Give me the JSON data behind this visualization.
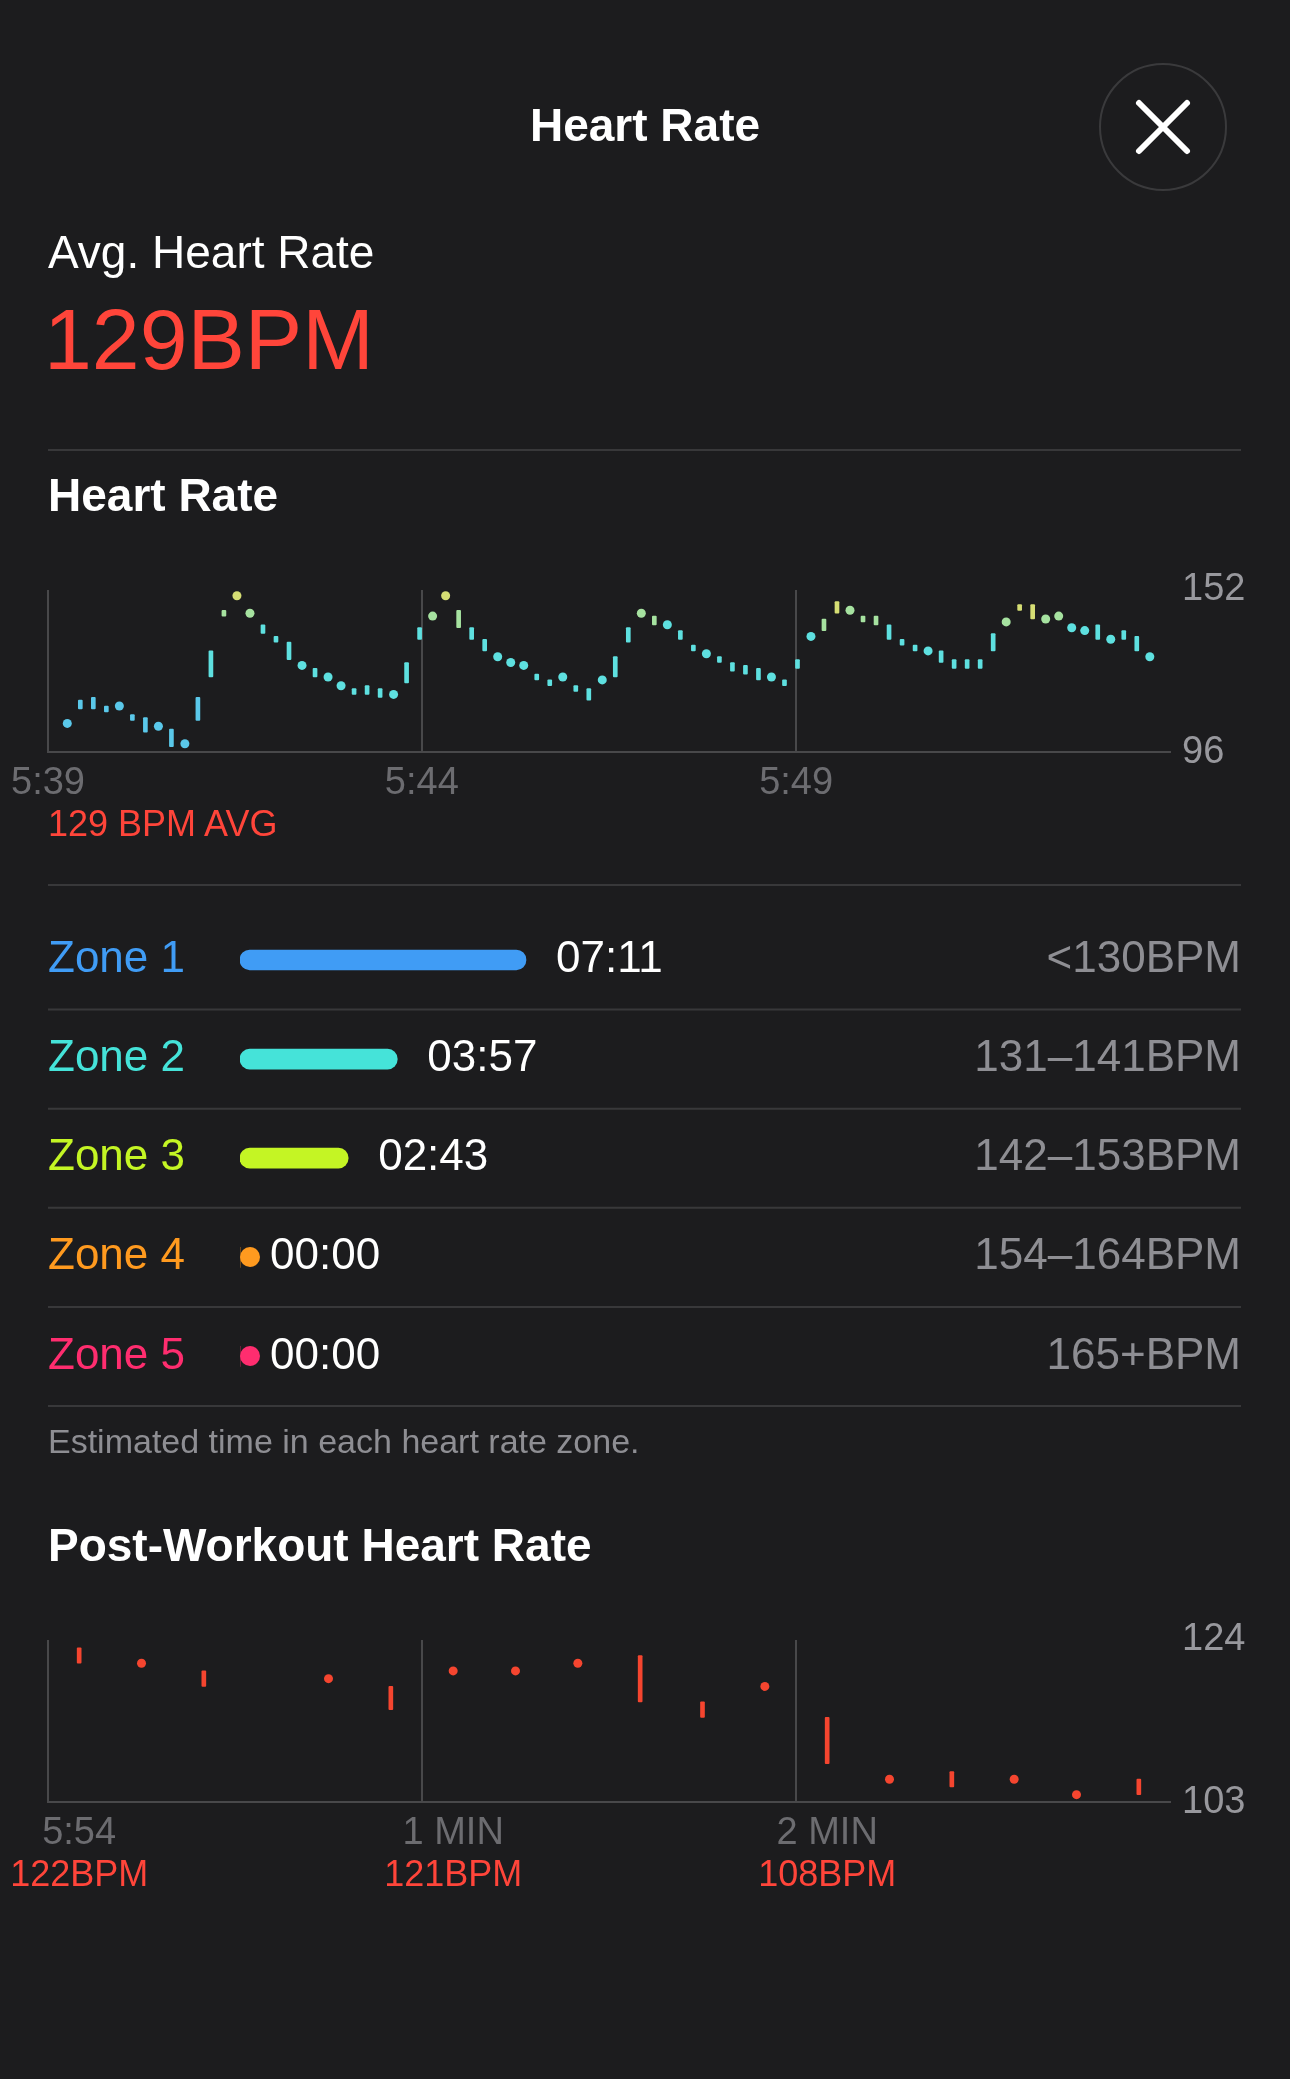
{
  "chart_data": [
    {
      "type": "other",
      "title": "Heart Rate",
      "subtitle": "Avg. Heart Rate",
      "annotations": [
        "129BPM"
      ]
    },
    {
      "type": "bar",
      "title": "Heart Rate",
      "x": [
        5.6543,
        5.6572,
        5.6601,
        5.663,
        5.6659,
        5.6688,
        5.6717,
        5.6746,
        5.6775,
        5.6805,
        5.6834,
        5.6863,
        5.6892,
        5.6921,
        5.695,
        5.6979,
        5.7008,
        5.7037,
        5.7066,
        5.7095,
        5.7124,
        5.7153,
        5.7182,
        5.7211,
        5.724,
        5.727,
        5.7299,
        5.7328,
        5.7357,
        5.7386,
        5.7415,
        5.7444,
        5.7473,
        5.7502,
        5.7531,
        5.756,
        5.7589,
        5.7618,
        5.7647,
        5.7676,
        5.7705,
        5.7735,
        5.7764,
        5.7793,
        5.7822,
        5.7851,
        5.788,
        5.7909,
        5.7938,
        5.7967,
        5.7996,
        5.8025,
        5.8054,
        5.8083,
        5.8112,
        5.8141,
        5.817,
        5.82,
        5.8229,
        5.8258,
        5.8287,
        5.8316,
        5.8345,
        5.8374,
        5.8403,
        5.8432,
        5.8461,
        5.849,
        5.8519,
        5.8548,
        5.8577,
        5.8606,
        5.8635,
        5.8665,
        5.8694,
        5.8723,
        5.8752,
        5.8781,
        5.881,
        5.8839,
        5.8868,
        5.8897,
        5.8926,
        5.8955
      ],
      "marker": "circle",
      "series": [
        {
          "type": "bar",
          "base": [
            null,
            111,
            111,
            110,
            null,
            107,
            103,
            null,
            98,
            null,
            107,
            122,
            143,
            null,
            null,
            137,
            134,
            128,
            null,
            122,
            null,
            null,
            116,
            116,
            115,
            null,
            120,
            135,
            null,
            null,
            139,
            135,
            131,
            null,
            null,
            null,
            121,
            119,
            null,
            117,
            114,
            null,
            122,
            134,
            null,
            140,
            null,
            135,
            131,
            null,
            127,
            124,
            123,
            121,
            null,
            119,
            125,
            null,
            138,
            144,
            null,
            141,
            140,
            135,
            133,
            131,
            null,
            127,
            125,
            125,
            125,
            131,
            null,
            145,
            142,
            null,
            null,
            null,
            null,
            135,
            null,
            135,
            131,
            null
          ],
          "values": [
            null,
            3,
            4,
            2,
            null,
            2,
            5,
            null,
            6,
            null,
            8,
            9,
            2,
            null,
            null,
            3,
            2,
            6,
            null,
            3,
            null,
            null,
            2,
            3,
            3,
            null,
            7,
            4,
            null,
            null,
            6,
            4,
            4,
            null,
            null,
            null,
            2,
            2,
            null,
            2,
            4,
            null,
            7,
            5,
            null,
            3,
            null,
            3,
            2,
            null,
            2,
            3,
            3,
            4,
            null,
            2,
            3,
            null,
            4,
            4,
            null,
            2,
            3,
            5,
            2,
            2,
            null,
            4,
            3,
            3,
            3,
            6,
            null,
            2,
            5,
            null,
            null,
            null,
            null,
            5,
            null,
            3,
            5,
            null
          ],
          "colors": [
            null,
            "#5ac8ea",
            "#5ac8ea",
            "#5ac8ea",
            null,
            "#5ac8ea",
            "#5ac8ea",
            null,
            "#5ac8ea",
            null,
            "#5ac8ea",
            "#5ee0e0",
            "#a6e2a0",
            null,
            null,
            "#5ee0e0",
            "#5ee0e0",
            "#5ee0e0",
            null,
            "#5ee0e0",
            null,
            null,
            "#5ee0e0",
            "#5ee0e0",
            "#5ee0e0",
            null,
            "#5ee0e0",
            "#5ee0e0",
            null,
            null,
            "#a6e2a0",
            "#5ee0e0",
            "#5ee0e0",
            null,
            null,
            null,
            "#5ee0e0",
            "#5ee0e0",
            null,
            "#5ee0e0",
            "#5ee0e0",
            null,
            "#5ee0e0",
            "#5ee0e0",
            null,
            "#a6e2a0",
            null,
            "#5ee0e0",
            "#5ee0e0",
            null,
            "#5ee0e0",
            "#5ee0e0",
            "#5ee0e0",
            "#5ee0e0",
            null,
            "#5ee0e0",
            "#5ee0e0",
            null,
            "#a6e2a0",
            "#d6de74",
            null,
            "#a6e2a0",
            "#a6e2a0",
            "#5ee0e0",
            "#5ee0e0",
            "#5ee0e0",
            null,
            "#5ee0e0",
            "#5ee0e0",
            "#5ee0e0",
            "#5ee0e0",
            "#5ee0e0",
            null,
            "#d6de74",
            "#d6de74",
            null,
            null,
            null,
            null,
            "#5ee0e0",
            null,
            "#5ee0e0",
            "#5ee0e0",
            null
          ]
        },
        {
          "type": "scatter",
          "values": [
            106,
            null,
            null,
            null,
            112,
            null,
            null,
            105,
            null,
            99,
            null,
            null,
            null,
            150,
            144,
            null,
            null,
            null,
            126,
            null,
            122,
            119,
            null,
            null,
            null,
            116,
            null,
            null,
            143,
            150,
            null,
            null,
            null,
            129,
            127,
            126,
            null,
            null,
            122,
            null,
            null,
            121,
            null,
            null,
            144,
            null,
            140,
            null,
            null,
            130,
            null,
            null,
            null,
            null,
            122,
            null,
            null,
            136,
            null,
            null,
            145,
            null,
            null,
            null,
            null,
            null,
            131,
            null,
            null,
            null,
            null,
            null,
            141,
            null,
            null,
            142,
            143,
            139,
            138,
            null,
            135,
            null,
            null,
            129
          ],
          "colors": [
            "#5ac8ea",
            null,
            null,
            null,
            "#5ac8ea",
            null,
            null,
            "#5ac8ea",
            null,
            "#5ac8ea",
            null,
            null,
            null,
            "#d6de74",
            "#a6e2a0",
            null,
            null,
            null,
            "#5ee0e0",
            null,
            "#5ee0e0",
            "#5ee0e0",
            null,
            null,
            null,
            "#5ee0e0",
            null,
            null,
            "#a6e2a0",
            "#d6de74",
            null,
            null,
            null,
            "#5ee0e0",
            "#5ee0e0",
            "#5ee0e0",
            null,
            null,
            "#5ee0e0",
            null,
            null,
            "#5ee0e0",
            null,
            null,
            "#a6e2a0",
            null,
            "#5ee0e0",
            null,
            null,
            "#5ee0e0",
            null,
            null,
            null,
            null,
            "#5ee0e0",
            null,
            null,
            "#5ee0e0",
            null,
            null,
            "#a6e2a0",
            null,
            null,
            null,
            null,
            null,
            "#5ee0e0",
            null,
            null,
            null,
            null,
            null,
            "#a6e2a0",
            null,
            null,
            "#a6e2a0",
            "#a6e2a0",
            "#5ee0e0",
            "#5ee0e0",
            null,
            "#5ee0e0",
            null,
            null,
            "#5ee0e0"
          ]
        }
      ],
      "xlim": [
        5.65,
        5.9
      ],
      "xticks": [
        {
          "value": 5.65,
          "label": "5:39"
        },
        {
          "value": 5.7333,
          "label": "5:44"
        },
        {
          "value": 5.8167,
          "label": "5:49"
        }
      ],
      "ylim": [
        96,
        152
      ],
      "yticks": [
        96,
        152
      ],
      "grid": "x",
      "annotations": [
        "129 BPM AVG"
      ]
    },
    {
      "type": "bar",
      "orientation": "horizontal",
      "categories": [
        "Zone 1",
        "Zone 2",
        "Zone 3",
        "Zone 4",
        "Zone 5"
      ],
      "values": [
        7.1833,
        3.95,
        2.7167,
        0,
        0
      ],
      "colors": [
        "#409cf5",
        "#45e3d9",
        "#c4f524",
        "#ff9a1f",
        "#ff2d6f"
      ],
      "value_labels": [
        "07:11",
        "03:57",
        "02:43",
        "00:00",
        "00:00"
      ],
      "annotations": [
        "<130BPM",
        "131–141BPM",
        "142–153BPM",
        "154–164BPM",
        "165+BPM",
        "Estimated time in each heart rate zone."
      ]
    },
    {
      "type": "bar",
      "title": "Post-Workout Heart Rate",
      "categories": [
        "5:54",
        null,
        null,
        null,
        null,
        null,
        "1 MIN",
        null,
        null,
        null,
        null,
        null,
        "2 MIN",
        null,
        null,
        null,
        null,
        null
      ],
      "marker": "circle",
      "series": [
        {
          "type": "bar",
          "color": "#f5452f",
          "base": [
            121,
            null,
            118,
            null,
            null,
            115,
            null,
            null,
            null,
            116,
            114,
            null,
            108,
            null,
            105,
            null,
            null,
            104
          ],
          "values": [
            2,
            null,
            2,
            null,
            null,
            3,
            null,
            null,
            null,
            6,
            2,
            null,
            6,
            null,
            2,
            null,
            null,
            2
          ]
        },
        {
          "type": "scatter",
          "color": "#f5452f",
          "values": [
            null,
            121,
            null,
            null,
            119,
            null,
            120,
            120,
            121,
            null,
            null,
            118,
            null,
            106,
            null,
            106,
            104,
            null
          ]
        }
      ],
      "ylim": [
        103,
        124
      ],
      "yticks": [
        103,
        124
      ],
      "grid": "x",
      "annotations": [
        "122BPM",
        "121BPM",
        "108BPM"
      ]
    }
  ]
}
